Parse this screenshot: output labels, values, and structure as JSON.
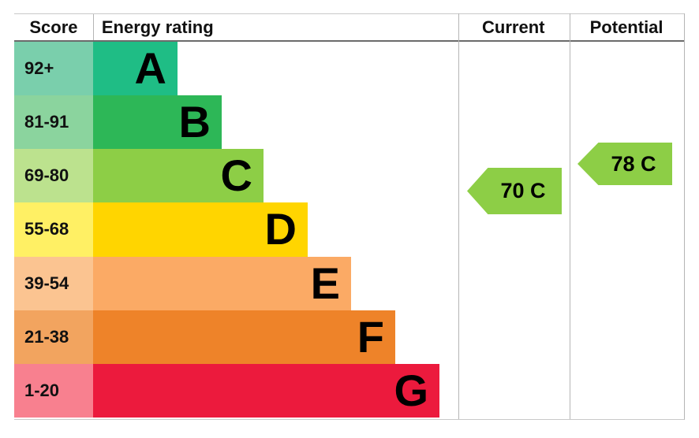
{
  "chart_data": {
    "type": "bar",
    "columns": [
      "Score",
      "Energy rating",
      "Current",
      "Potential"
    ],
    "bands": [
      {
        "letter": "A",
        "score_range": "92+",
        "color": "#1fbd85",
        "tint": "#7acfac"
      },
      {
        "letter": "B",
        "score_range": "81-91",
        "color": "#2db757",
        "tint": "#8bd49e"
      },
      {
        "letter": "C",
        "score_range": "69-80",
        "color": "#8dce46",
        "tint": "#bce28e"
      },
      {
        "letter": "D",
        "score_range": "55-68",
        "color": "#ffd500",
        "tint": "#fff064"
      },
      {
        "letter": "E",
        "score_range": "39-54",
        "color": "#fbaa65",
        "tint": "#fbc491"
      },
      {
        "letter": "F",
        "score_range": "21-38",
        "color": "#ee8329",
        "tint": "#f2a45f"
      },
      {
        "letter": "G",
        "score_range": "1-20",
        "color": "#ec1a3d",
        "tint": "#f8808f"
      }
    ],
    "current": {
      "value": 70,
      "band": "C",
      "label": "70 C",
      "color": "#8dce46"
    },
    "potential": {
      "value": 78,
      "band": "C",
      "label": "78 C",
      "color": "#8dce46"
    }
  }
}
